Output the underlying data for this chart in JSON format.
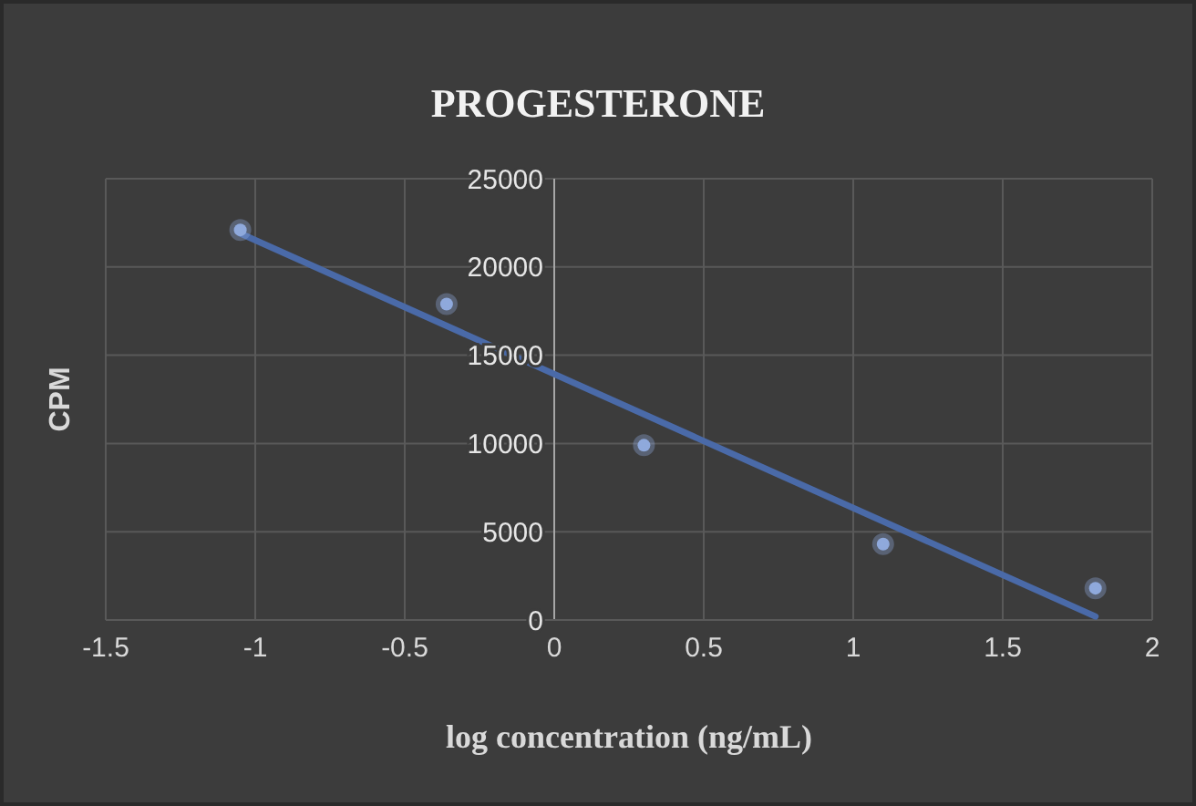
{
  "chart_data": {
    "type": "scatter",
    "title": "PROGESTERONE",
    "xlabel": "log concentration (ng/mL)",
    "ylabel": "CPM",
    "series": [
      {
        "color": "#8faadc",
        "marker": "circle",
        "x": [
          -1.05,
          -0.36,
          0.3,
          1.1,
          1.81
        ],
        "values": [
          22100,
          17900,
          9900,
          4300,
          1800
        ]
      },
      {
        "type": "line",
        "marker": "none",
        "color": "#4a6aa8",
        "x": [
          -1.05,
          1.81
        ],
        "values": [
          21900,
          200
        ]
      }
    ],
    "xlim": [
      -1.5,
      2
    ],
    "xticks": [
      -1.5,
      -1,
      -0.5,
      0,
      0.5,
      1,
      1.5,
      2
    ],
    "ylim": [
      0,
      25000
    ],
    "yticks": [
      0,
      5000,
      10000,
      15000,
      20000,
      25000
    ],
    "grid": true
  }
}
